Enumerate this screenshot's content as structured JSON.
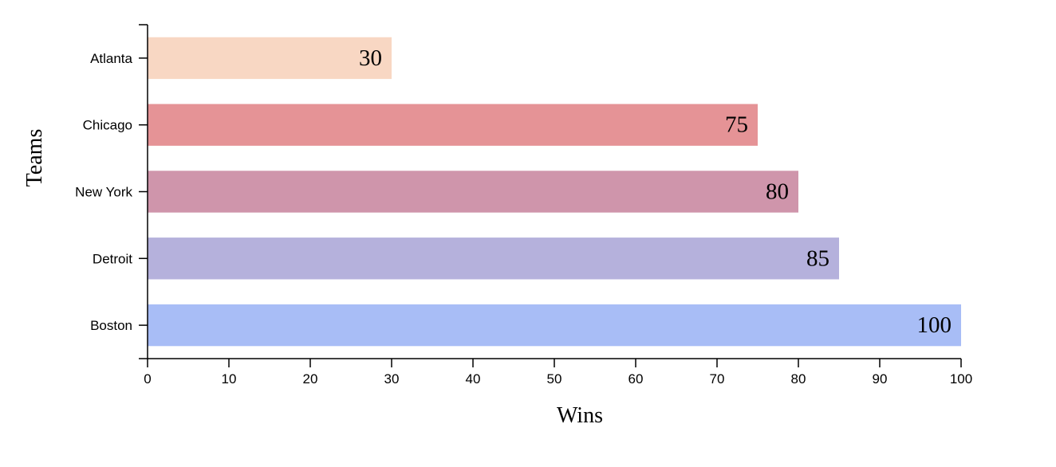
{
  "chart_data": {
    "type": "bar",
    "orientation": "horizontal",
    "categories": [
      "Atlanta",
      "Chicago",
      "New York",
      "Detroit",
      "Boston"
    ],
    "values": [
      30,
      75,
      80,
      85,
      100
    ],
    "colors": [
      "#f8d7c3",
      "#e59396",
      "#cf95ab",
      "#b5b1dc",
      "#a8bdf6"
    ],
    "xlabel": "Wins",
    "ylabel": "Teams",
    "xlim": [
      0,
      100
    ],
    "xticks": [
      0,
      10,
      20,
      30,
      40,
      50,
      60,
      70,
      80,
      90,
      100
    ],
    "grid": false,
    "legend": "none"
  }
}
